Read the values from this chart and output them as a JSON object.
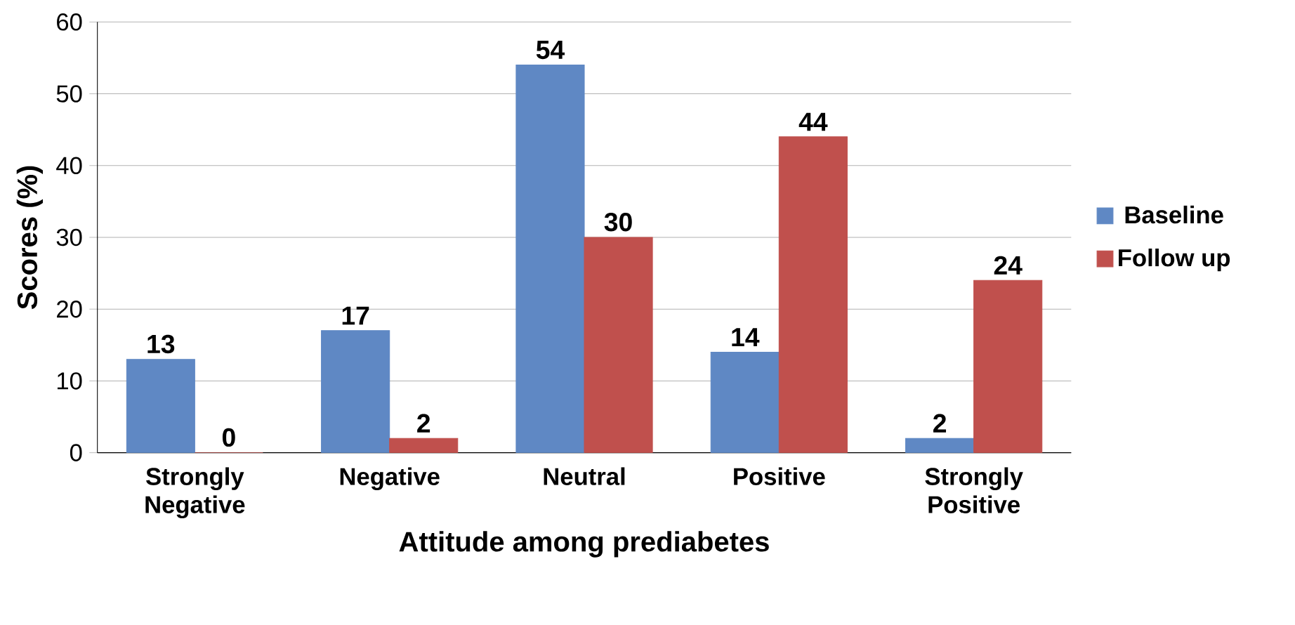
{
  "chart_data": {
    "type": "bar",
    "xlabel": "Attitude among prediabetes",
    "ylabel": "Scores (%)",
    "categories": [
      "Strongly Negative",
      "Negative",
      "Neutral",
      "Positive",
      "Strongly Positive"
    ],
    "series": [
      {
        "name": "Baseline",
        "color": "#5f88c4",
        "values": [
          13,
          17,
          54,
          14,
          2
        ]
      },
      {
        "name": "Follow up",
        "color": "#c0504d",
        "values": [
          0,
          2,
          30,
          44,
          24
        ]
      }
    ],
    "ylim": [
      0,
      60
    ],
    "yticks": [
      0,
      10,
      20,
      30,
      40,
      50,
      60
    ],
    "grid": "y",
    "legend": "right",
    "data_labels": true
  }
}
